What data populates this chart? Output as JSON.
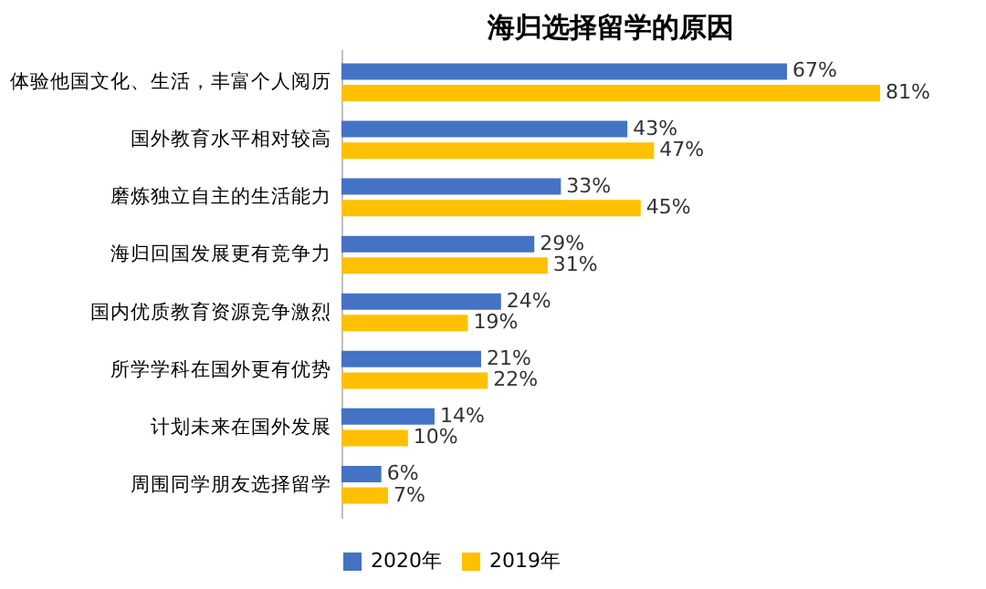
{
  "chart_data": {
    "type": "bar",
    "orientation": "horizontal",
    "title": "海归选择留学的原因",
    "categories": [
      "体验他国文化、生活，丰富个人阅历",
      "国外教育水平相对较高",
      "磨炼独立自主的生活能力",
      "海归回国发展更有竞争力",
      "国内优质教育资源竞争激烈",
      "所学学科在国外更有优势",
      "计划未来在国外发展",
      "周围同学朋友选择留学"
    ],
    "series": [
      {
        "name": "2020年",
        "color": "#4472c4",
        "values": [
          67,
          43,
          33,
          29,
          24,
          21,
          14,
          6
        ],
        "value_labels": [
          "67%",
          "43%",
          "33%",
          "29%",
          "24%",
          "21%",
          "14%",
          "6%"
        ]
      },
      {
        "name": "2019年",
        "color": "#ffc000",
        "values": [
          81,
          47,
          45,
          31,
          19,
          22,
          10,
          7
        ],
        "value_labels": [
          "81%",
          "47%",
          "45%",
          "31%",
          "19%",
          "22%",
          "10%",
          "7%"
        ]
      }
    ],
    "legend": "bottom",
    "grid": false
  }
}
